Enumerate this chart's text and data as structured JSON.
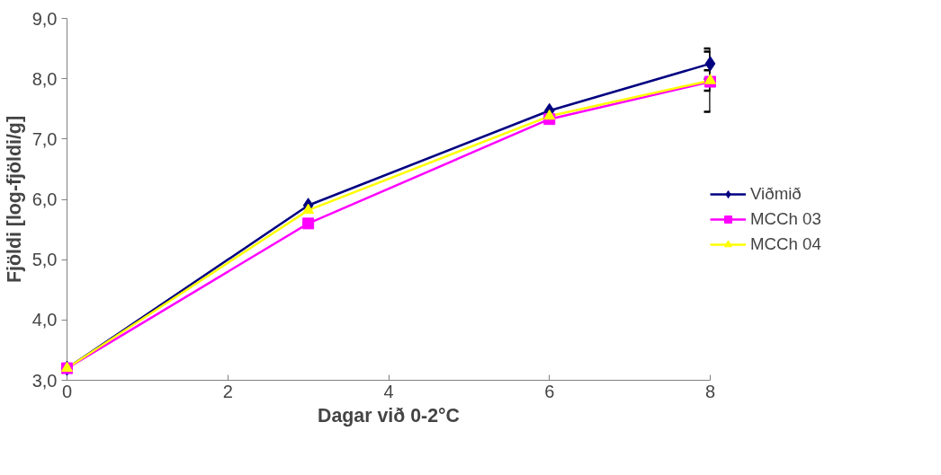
{
  "chart_data": {
    "type": "line",
    "xlabel": "Dagar við 0-2°C",
    "ylabel": "Fjöldi [log-fjöldi/g]",
    "x": [
      0,
      3,
      6,
      8
    ],
    "series": [
      {
        "name": "Viðmið",
        "color": "#000080",
        "marker": "diamond",
        "values": [
          3.2,
          5.9,
          7.47,
          8.25
        ],
        "errors": [
          null,
          null,
          null,
          0.25
        ]
      },
      {
        "name": "MCCh 03",
        "color": "#ff00ff",
        "marker": "square",
        "values": [
          3.2,
          5.6,
          7.33,
          7.95
        ],
        "errors": [
          null,
          null,
          null,
          0.5
        ]
      },
      {
        "name": "MCCh 04",
        "color": "#ffff00",
        "marker": "triangle",
        "values": [
          3.2,
          5.82,
          7.38,
          7.97
        ],
        "errors": [
          null,
          null,
          null,
          0.17
        ]
      }
    ],
    "xlim": [
      0,
      8
    ],
    "xticks": [
      0,
      2,
      4,
      6,
      8
    ],
    "ylim": [
      3,
      9
    ],
    "yticks": [
      {
        "value": 3,
        "label": "3,0"
      },
      {
        "value": 4,
        "label": "4,0"
      },
      {
        "value": 5,
        "label": "5,0"
      },
      {
        "value": 6,
        "label": "6,0"
      },
      {
        "value": 7,
        "label": "7,0"
      },
      {
        "value": 8,
        "label": "8,0"
      },
      {
        "value": 9,
        "label": "9,0"
      }
    ],
    "grid": false,
    "legend": "right",
    "line_style": "solid"
  }
}
